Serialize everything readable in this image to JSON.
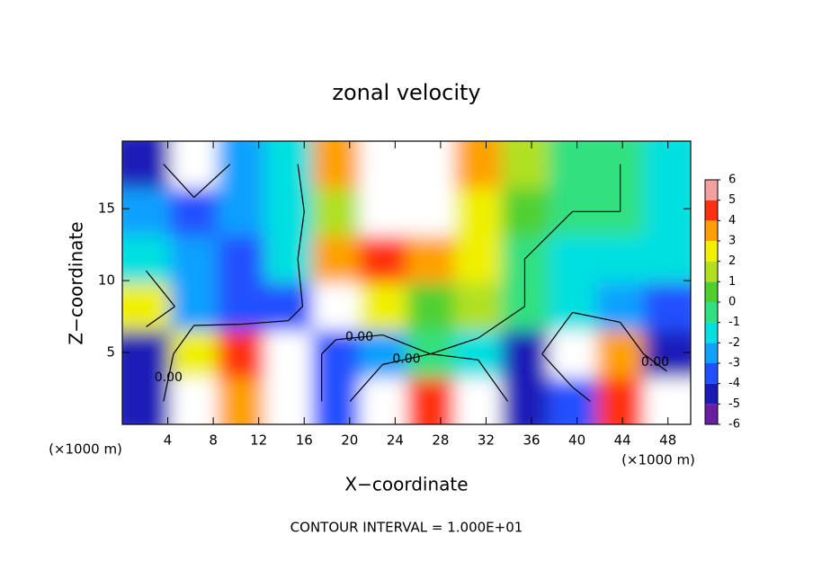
{
  "chart_data": {
    "type": "heatmap",
    "title": "zonal velocity",
    "x_label": "X−coordinate",
    "y_label": "Z−coordinate",
    "x_unit": "(×1000 m)",
    "note": "CONTOUR INTERVAL = 1.000E+01",
    "xlim": [
      0,
      50
    ],
    "ylim": [
      0,
      19.7
    ],
    "xticks": [
      4,
      8,
      12,
      16,
      20,
      24,
      28,
      32,
      36,
      40,
      44,
      48
    ],
    "yticks": [
      5,
      10,
      15
    ],
    "x": [
      2.1,
      6.3,
      10.4,
      14.6,
      18.8,
      22.9,
      27.1,
      31.3,
      35.4,
      39.6,
      43.8,
      47.9
    ],
    "z": [
      1.6,
      4.9,
      8.2,
      11.5,
      14.8,
      18.1
    ],
    "values": [
      [
        -4,
        7,
        4,
        7,
        -3,
        7,
        5,
        7,
        -4,
        -3,
        5,
        7
      ],
      [
        -4,
        3,
        5,
        7,
        -3,
        -2,
        0,
        -1,
        -4,
        7,
        4,
        -4
      ],
      [
        3,
        -2,
        -3,
        -3,
        7,
        3,
        1,
        2,
        0,
        -1,
        -2,
        -3
      ],
      [
        -1,
        -2,
        -3,
        -1,
        4,
        5,
        4,
        3,
        0,
        -1,
        -1,
        -1
      ],
      [
        -2,
        -3,
        -2,
        -1,
        2,
        7,
        7,
        3,
        1,
        0,
        0,
        -1
      ],
      [
        -4,
        7,
        -2,
        -1,
        4,
        7,
        7,
        4,
        2,
        0,
        0,
        -1
      ]
    ],
    "contour_level": {
      "value": 0,
      "label": "0.00"
    },
    "colorbar": {
      "levels": [
        -6,
        -5,
        -4,
        -3,
        -2,
        -1,
        0,
        1,
        2,
        3,
        4,
        5,
        6
      ],
      "colors": [
        "#6a1fa0",
        "#1a1ab8",
        "#2050ff",
        "#10a0ff",
        "#00e0e0",
        "#30e080",
        "#50d030",
        "#b0e020",
        "#f0f000",
        "#ffa000",
        "#ff3010",
        "#f5a0a0"
      ]
    }
  }
}
